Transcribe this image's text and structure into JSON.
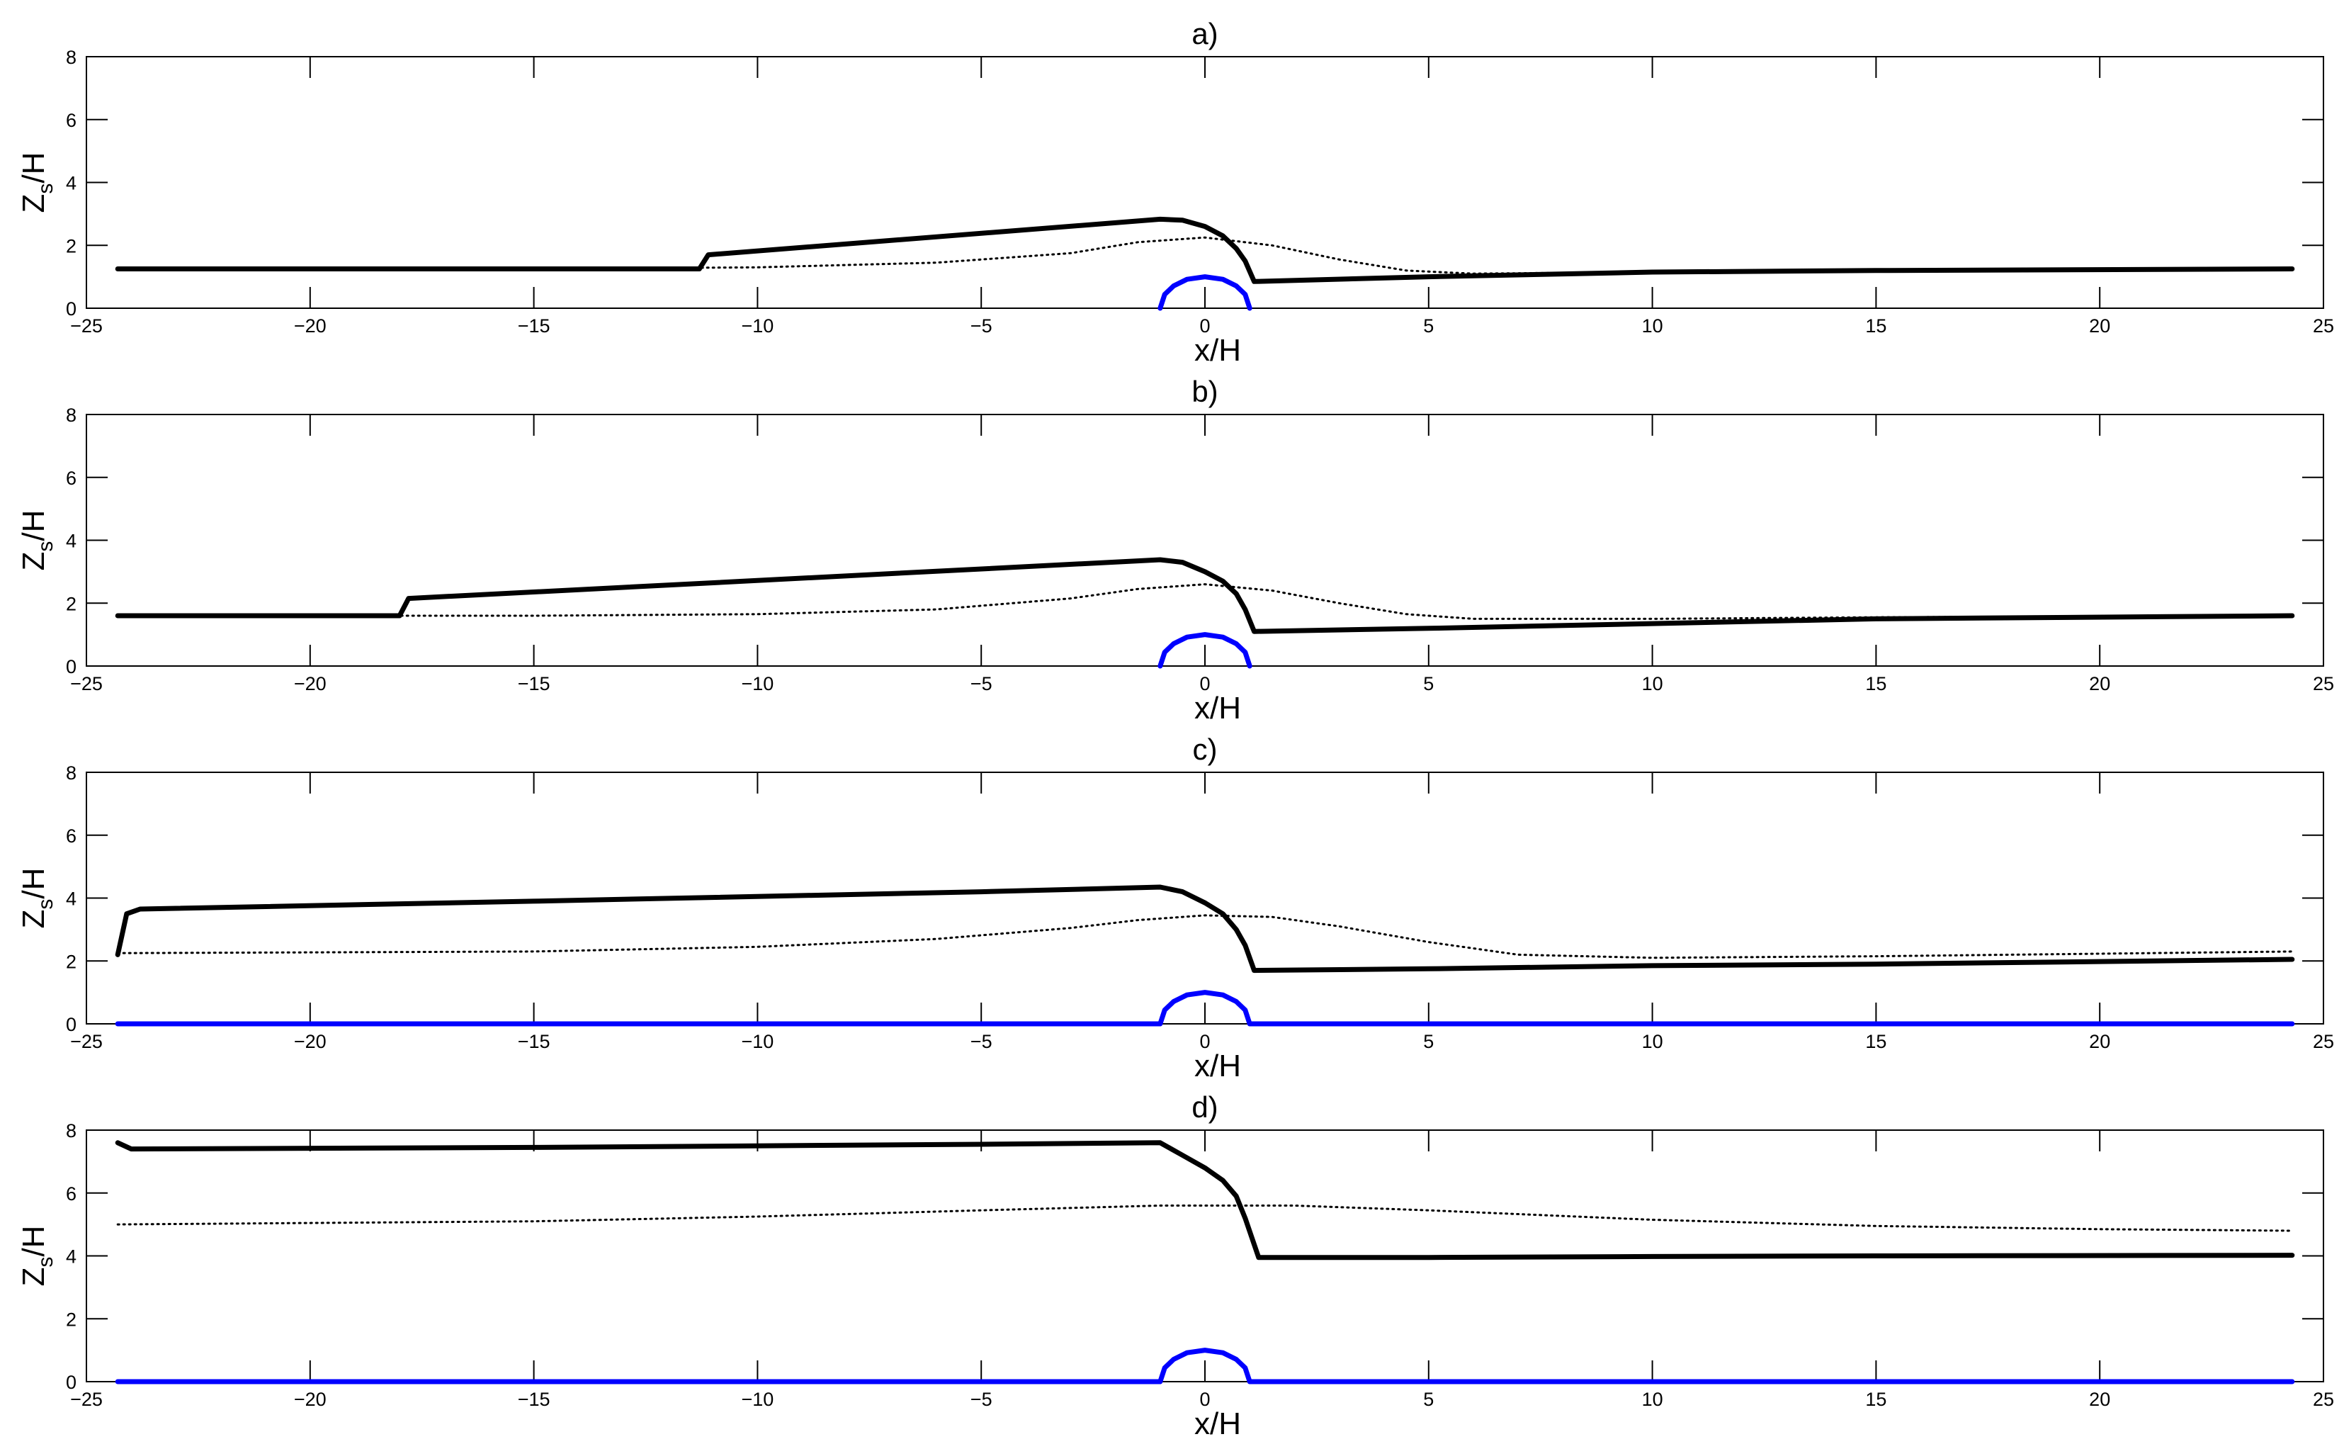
{
  "chart_data": [
    {
      "type": "line",
      "title": "a)",
      "xlabel": "x/H",
      "ylabel": "Z/H",
      "ylabel_subscript": "s",
      "xlim": [
        -25,
        25
      ],
      "ylim": [
        0,
        8
      ],
      "xticks": [
        -25,
        -20,
        -15,
        -10,
        -5,
        0,
        5,
        10,
        15,
        20,
        25
      ],
      "yticks": [
        0,
        2,
        4,
        6,
        8
      ],
      "grid": false,
      "series": [
        {
          "style": "solid",
          "color": "#000000",
          "x": [
            -24.3,
            -11.3,
            -11.1,
            -1.0,
            -0.5,
            0.0,
            0.4,
            0.7,
            0.9,
            1.1,
            5.0,
            10.0,
            15.0,
            24.3
          ],
          "y": [
            1.25,
            1.25,
            1.7,
            2.83,
            2.8,
            2.6,
            2.3,
            1.9,
            1.5,
            0.85,
            1.0,
            1.15,
            1.2,
            1.25
          ]
        },
        {
          "style": "dotted",
          "color": "#000000",
          "x": [
            -24.3,
            -15,
            -10,
            -6,
            -3,
            -1.5,
            0,
            1.5,
            3,
            4.5,
            6,
            10,
            15,
            24.3
          ],
          "y": [
            1.25,
            1.25,
            1.3,
            1.45,
            1.75,
            2.1,
            2.25,
            2.0,
            1.55,
            1.2,
            1.1,
            1.15,
            1.2,
            1.25
          ]
        },
        {
          "style": "solid",
          "color": "#0000ff",
          "x": [
            -1.0,
            -0.9,
            -0.7,
            -0.4,
            0.0,
            0.4,
            0.7,
            0.9,
            1.0
          ],
          "y": [
            0.0,
            0.44,
            0.71,
            0.92,
            1.0,
            0.92,
            0.71,
            0.44,
            0.0
          ]
        }
      ]
    },
    {
      "type": "line",
      "title": "b)",
      "xlabel": "x/H",
      "ylabel": "Z/H",
      "ylabel_subscript": "s",
      "xlim": [
        -25,
        25
      ],
      "ylim": [
        0,
        8
      ],
      "xticks": [
        -25,
        -20,
        -15,
        -10,
        -5,
        0,
        5,
        10,
        15,
        20,
        25
      ],
      "yticks": [
        0,
        2,
        4,
        6,
        8
      ],
      "grid": false,
      "series": [
        {
          "style": "solid",
          "color": "#000000",
          "x": [
            -24.3,
            -18.0,
            -17.8,
            -1.0,
            -0.5,
            0.0,
            0.4,
            0.7,
            0.9,
            1.1,
            5.0,
            10.0,
            15.0,
            24.3
          ],
          "y": [
            1.6,
            1.6,
            2.15,
            3.38,
            3.3,
            3.0,
            2.7,
            2.3,
            1.8,
            1.1,
            1.2,
            1.35,
            1.5,
            1.6
          ]
        },
        {
          "style": "dotted",
          "color": "#000000",
          "x": [
            -24.3,
            -15,
            -10,
            -6,
            -3,
            -1.5,
            0,
            1.5,
            3,
            4.5,
            6,
            10,
            15,
            24.3
          ],
          "y": [
            1.6,
            1.6,
            1.65,
            1.8,
            2.15,
            2.45,
            2.6,
            2.4,
            2.0,
            1.65,
            1.5,
            1.5,
            1.55,
            1.6
          ]
        },
        {
          "style": "solid",
          "color": "#0000ff",
          "x": [
            -1.0,
            -0.9,
            -0.7,
            -0.4,
            0.0,
            0.4,
            0.7,
            0.9,
            1.0
          ],
          "y": [
            0.0,
            0.44,
            0.71,
            0.92,
            1.0,
            0.92,
            0.71,
            0.44,
            0.0
          ]
        }
      ]
    },
    {
      "type": "line",
      "title": "c)",
      "xlabel": "x/H",
      "ylabel": "Z/H",
      "ylabel_subscript": "s",
      "xlim": [
        -25,
        25
      ],
      "ylim": [
        0,
        8
      ],
      "xticks": [
        -25,
        -20,
        -15,
        -10,
        -5,
        0,
        5,
        10,
        15,
        20,
        25
      ],
      "yticks": [
        0,
        2,
        4,
        6,
        8
      ],
      "grid": false,
      "series": [
        {
          "style": "solid",
          "color": "#000000",
          "x": [
            -24.3,
            -24.1,
            -23.8,
            -15,
            -5,
            -1.0,
            -0.5,
            0.0,
            0.4,
            0.7,
            0.9,
            1.1,
            5.0,
            10.0,
            15.0,
            24.3
          ],
          "y": [
            2.2,
            3.5,
            3.65,
            3.9,
            4.2,
            4.35,
            4.2,
            3.85,
            3.5,
            3.0,
            2.5,
            1.7,
            1.75,
            1.85,
            1.9,
            2.05
          ]
        },
        {
          "style": "dotted",
          "color": "#000000",
          "x": [
            -24.3,
            -15,
            -10,
            -6,
            -3,
            -1.5,
            0,
            1.5,
            3,
            5,
            7,
            10,
            15,
            24.3
          ],
          "y": [
            2.25,
            2.3,
            2.45,
            2.7,
            3.05,
            3.3,
            3.45,
            3.4,
            3.1,
            2.6,
            2.2,
            2.1,
            2.15,
            2.3
          ]
        },
        {
          "style": "solid",
          "color": "#0000ff",
          "x": [
            -24.3,
            -1.0,
            -0.9,
            -0.7,
            -0.4,
            0.0,
            0.4,
            0.7,
            0.9,
            1.0,
            24.3
          ],
          "y": [
            0.0,
            0.0,
            0.44,
            0.71,
            0.92,
            1.0,
            0.92,
            0.71,
            0.44,
            0.0,
            0.0
          ]
        }
      ]
    },
    {
      "type": "line",
      "title": "d)",
      "xlabel": "x/H",
      "ylabel": "Z/H",
      "ylabel_subscript": "s",
      "xlim": [
        -25,
        25
      ],
      "ylim": [
        0,
        8
      ],
      "xticks": [
        -25,
        -20,
        -15,
        -10,
        -5,
        0,
        5,
        10,
        15,
        20,
        25
      ],
      "yticks": [
        0,
        2,
        4,
        6,
        8
      ],
      "grid": false,
      "series": [
        {
          "style": "solid",
          "color": "#000000",
          "x": [
            -24.3,
            -24.0,
            -15,
            -5,
            -1.0,
            -0.5,
            0.0,
            0.4,
            0.7,
            0.9,
            1.2,
            5.0,
            10.0,
            15.0,
            24.3
          ],
          "y": [
            7.6,
            7.4,
            7.45,
            7.55,
            7.6,
            7.2,
            6.8,
            6.4,
            5.9,
            5.2,
            3.95,
            3.95,
            3.98,
            4.0,
            4.02
          ]
        },
        {
          "style": "dotted",
          "color": "#000000",
          "x": [
            -24.3,
            -15,
            -10,
            -5,
            -1,
            2,
            5,
            10,
            15,
            20,
            24.3
          ],
          "y": [
            5.0,
            5.1,
            5.25,
            5.45,
            5.6,
            5.6,
            5.45,
            5.15,
            4.95,
            4.85,
            4.8
          ]
        },
        {
          "style": "solid",
          "color": "#0000ff",
          "x": [
            -24.3,
            -1.0,
            -0.9,
            -0.7,
            -0.4,
            0.0,
            0.4,
            0.7,
            0.9,
            1.0,
            24.3
          ],
          "y": [
            0.0,
            0.0,
            0.44,
            0.71,
            0.92,
            1.0,
            0.92,
            0.71,
            0.44,
            0.0,
            0.0
          ]
        }
      ]
    }
  ]
}
